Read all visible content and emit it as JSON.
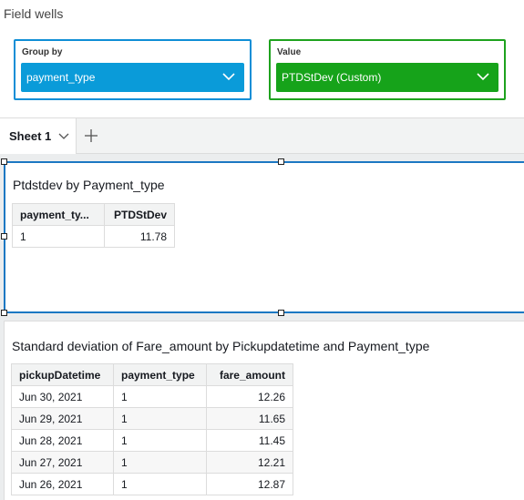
{
  "field_wells": {
    "title": "Field wells",
    "group_by": {
      "label": "Group by",
      "field": "payment_type"
    },
    "value": {
      "label": "Value",
      "field": "PTDStDev (Custom)"
    }
  },
  "tabs": [
    {
      "label": "Sheet 1"
    }
  ],
  "visual1": {
    "title": "Ptdstdev by Payment_type",
    "columns": [
      "payment_ty...",
      "PTDStDev"
    ],
    "rows": [
      [
        "1",
        "11.78"
      ]
    ]
  },
  "visual2": {
    "title": "Standard deviation of Fare_amount by Pickupdatetime and Payment_type",
    "columns": [
      "pickupDatetime",
      "payment_type",
      "fare_amount"
    ],
    "rows": [
      [
        "Jun 30, 2021",
        "1",
        "12.26"
      ],
      [
        "Jun 29, 2021",
        "1",
        "11.65"
      ],
      [
        "Jun 28, 2021",
        "1",
        "11.45"
      ],
      [
        "Jun 27, 2021",
        "1",
        "12.21"
      ],
      [
        "Jun 26, 2021",
        "1",
        "12.87"
      ]
    ]
  },
  "colors": {
    "group_by_accent": "#0a9bd9",
    "value_accent": "#16a31a",
    "selection_border": "#1c78c3"
  }
}
